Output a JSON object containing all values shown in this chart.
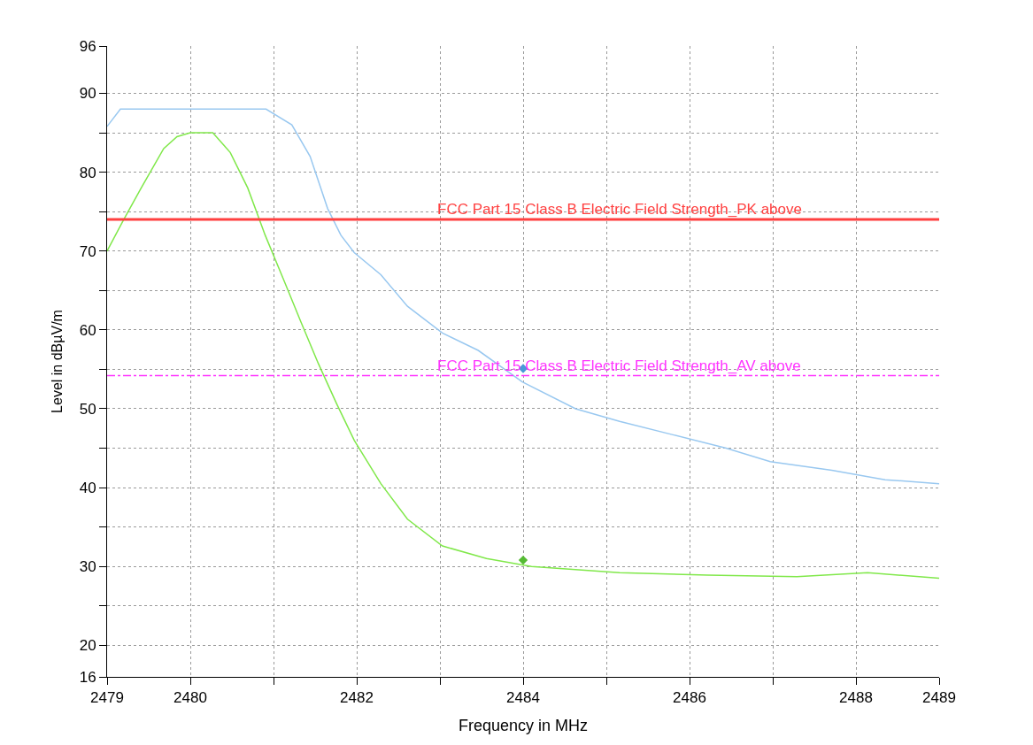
{
  "chart_data": {
    "type": "line",
    "xlabel": "Frequency in MHz",
    "ylabel": "Level in dBµV/m",
    "xlim": [
      2479,
      2489
    ],
    "ylim": [
      16,
      96
    ],
    "xticks": [
      2479,
      2480,
      {
        "value": 2481,
        "label": null
      },
      2482,
      {
        "value": 2483,
        "label": null
      },
      2484,
      {
        "value": 2485,
        "label": null
      },
      2486,
      {
        "value": 2487,
        "label": null
      },
      2488,
      2489
    ],
    "yticks": [
      16,
      20,
      {
        "value": 25,
        "label": null
      },
      30,
      {
        "value": 35,
        "label": null
      },
      40,
      {
        "value": 45,
        "label": null
      },
      50,
      {
        "value": 55,
        "label": null
      },
      60,
      {
        "value": 65,
        "label": null
      },
      70,
      {
        "value": 75,
        "label": null
      },
      80,
      {
        "value": 85,
        "label": null
      },
      90,
      96
    ],
    "grid": true,
    "series": [
      {
        "color": "#99c8f0",
        "x": [
          2479,
          2479.16,
          2480.91,
          2481.22,
          2481.44,
          2481.65,
          2481.81,
          2481.97,
          2482.29,
          2482.61,
          2483.03,
          2483.46,
          2483.99,
          2484.63,
          2485.16,
          2485.8,
          2486.44,
          2486.97,
          2487.71,
          2488.35,
          2489
        ],
        "values": [
          85.8,
          88,
          88,
          86,
          82,
          75.4,
          72,
          69.8,
          67,
          63,
          59.6,
          57.4,
          53.4,
          50,
          48.4,
          46.7,
          45,
          43.3,
          42.2,
          41,
          40.5
        ]
      },
      {
        "color": "#80e84a",
        "x": [
          2479,
          2479.2,
          2479.41,
          2479.68,
          2479.84,
          2480.0,
          2480.27,
          2480.48,
          2480.69,
          2480.9,
          2481.12,
          2481.33,
          2481.54,
          2481.76,
          2481.97,
          2482.29,
          2482.61,
          2483.03,
          2483.56,
          2484.1,
          2485.16,
          2486.22,
          2487.29,
          2488.14,
          2489
        ],
        "values": [
          70,
          74,
          78,
          83,
          84.5,
          85,
          85,
          82.5,
          78,
          72,
          66.4,
          61,
          55.7,
          50.6,
          46,
          40.5,
          36,
          32.6,
          31,
          30,
          29.2,
          28.9,
          28.7,
          29.2,
          28.5
        ]
      },
      {
        "type": "scatter",
        "marker": "diamond",
        "color": "#4a9ad8",
        "x": [
          2484
        ],
        "values": [
          55.1
        ]
      },
      {
        "type": "scatter",
        "marker": "diamond",
        "color": "#55bb33",
        "x": [
          2484
        ],
        "values": [
          30.8
        ]
      }
    ],
    "ref_lines": [
      {
        "axis": "y",
        "value": 74,
        "label": "FCC Part 15 Class B Electric Field Strength_PK above",
        "color": "#ff4040",
        "line_style": "solid"
      },
      {
        "axis": "y",
        "value": 54.2,
        "label": "FCC Part 15 Class B Electric Field Strength_AV above",
        "color": "#ff33ff",
        "line_style": "dashdot"
      }
    ]
  }
}
